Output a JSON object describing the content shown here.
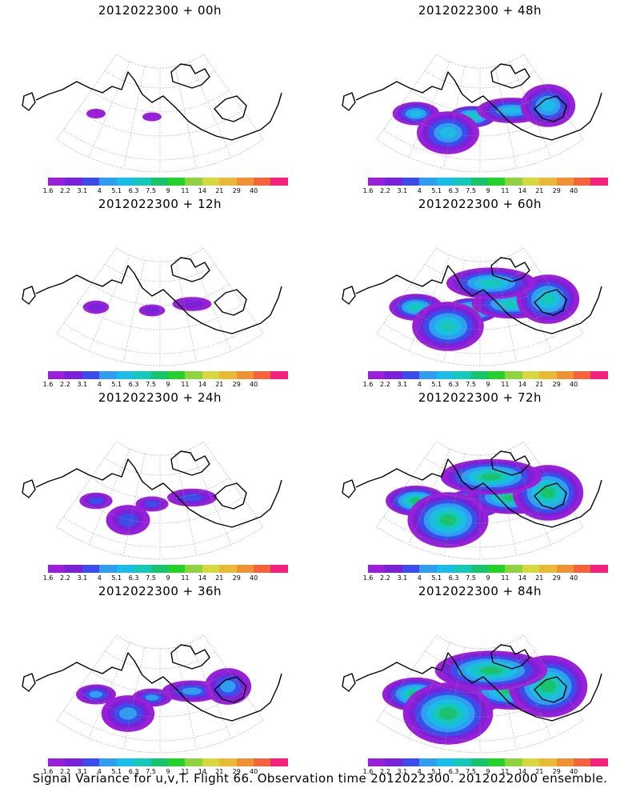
{
  "palette": {
    "colors": [
      "#9a1fd8",
      "#7a22d8",
      "#3d4bea",
      "#2f9df0",
      "#19bde7",
      "#14c9b9",
      "#18c46b",
      "#24d12a",
      "#8fd43e",
      "#d8d73f",
      "#e8b936",
      "#ef9233",
      "#f4633b",
      "#f51f7c"
    ],
    "tick_labels": [
      "1.6",
      "2.2",
      "3.1",
      "4",
      "5.1",
      "6.3",
      "7.5",
      "9",
      "11",
      "14",
      "21",
      "29",
      "40"
    ]
  },
  "panels": [
    {
      "title": "2012022300 + 00h",
      "level": 0
    },
    {
      "title": "2012022300 + 48h",
      "level": 4
    },
    {
      "title": "2012022300 + 12h",
      "level": 1
    },
    {
      "title": "2012022300 + 60h",
      "level": 5
    },
    {
      "title": "2012022300 + 24h",
      "level": 2
    },
    {
      "title": "2012022300 + 72h",
      "level": 6
    },
    {
      "title": "2012022300 + 36h",
      "level": 3
    },
    {
      "title": "2012022300 + 84h",
      "level": 7
    }
  ],
  "footer": "Signal Variance for u,v,T. Flight 66. Observation time 2012022300. 2012022000 ensemble."
}
